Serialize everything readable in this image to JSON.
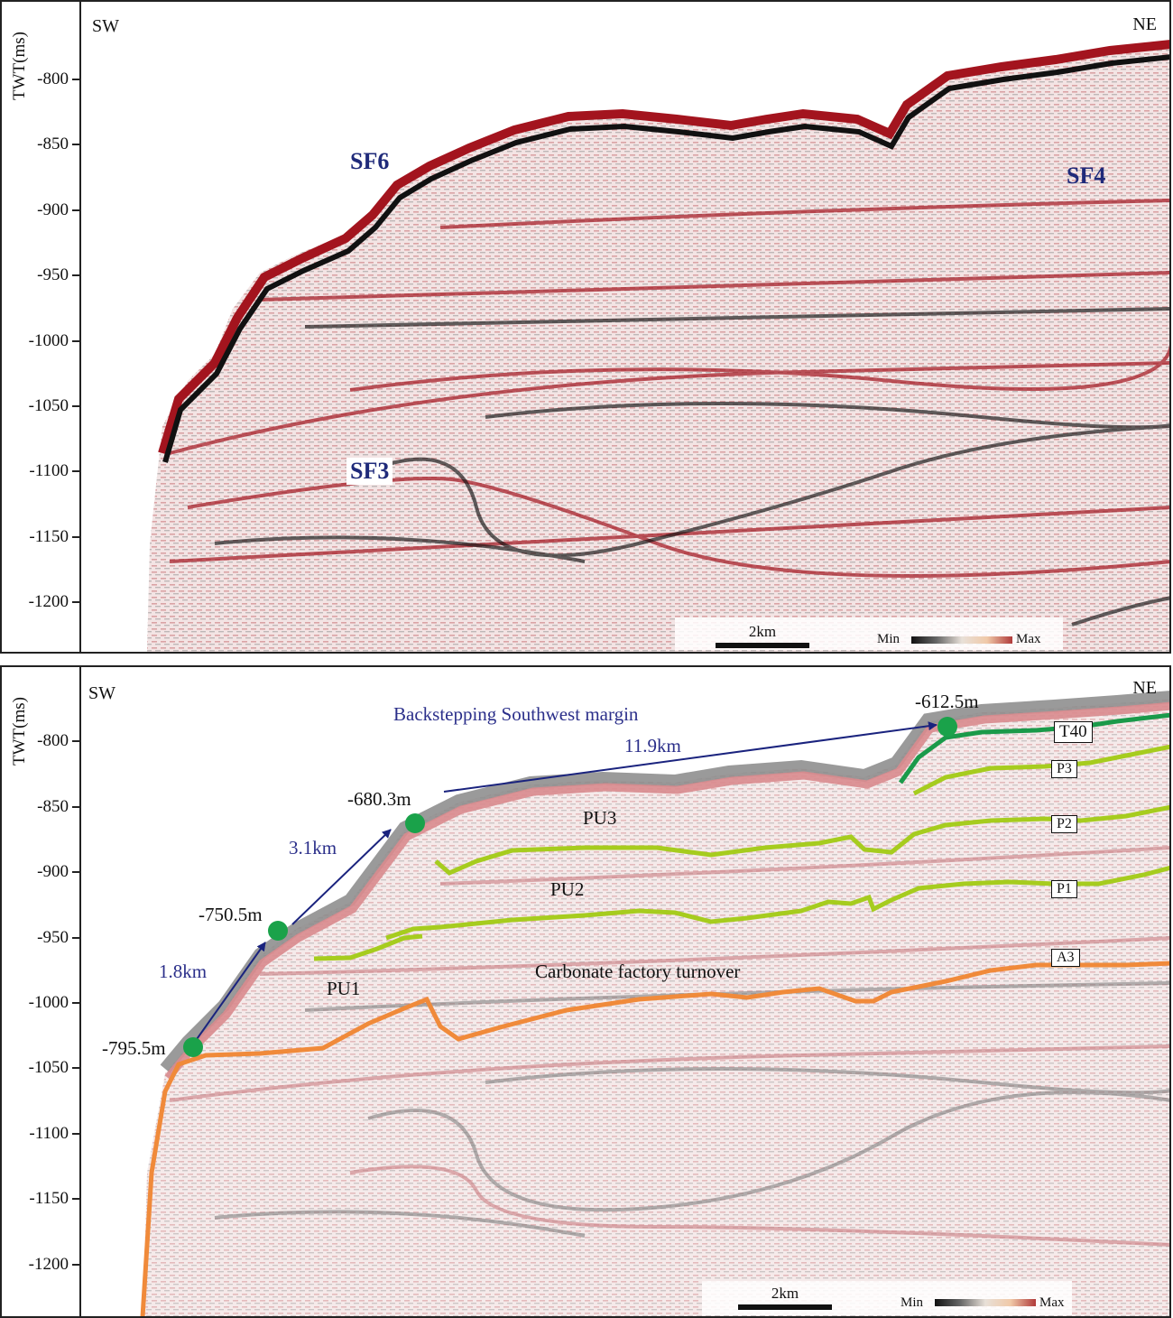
{
  "top_panel": {
    "axis_title": "TWT(ms)",
    "ticks": [
      "-800",
      "-850",
      "-900",
      "-950",
      "-1000",
      "-1050",
      "-1100",
      "-1150",
      "-1200"
    ],
    "left_label": "SW",
    "right_label": "NE",
    "sf_labels": {
      "sf6": "SF6",
      "sf4": "SF4",
      "sf3": "SF3"
    },
    "scale_bar": "2km",
    "colorbar": {
      "min": "Min",
      "max": "Max"
    }
  },
  "bottom_panel": {
    "axis_title": "TWT(ms)",
    "ticks": [
      "-800",
      "-850",
      "-900",
      "-950",
      "-1000",
      "-1050",
      "-1100",
      "-1150",
      "-1200"
    ],
    "left_label": "SW",
    "right_label": "NE",
    "title": "Backstepping Southwest margin",
    "depths": {
      "d1": "-795.5m",
      "d2": "-750.5m",
      "d3": "-680.3m",
      "d4": "-612.5m"
    },
    "distances": {
      "a": "1.8km",
      "b": "3.1km",
      "c": "11.9km"
    },
    "units": {
      "pu1": "PU1",
      "pu2": "PU2",
      "pu3": "PU3"
    },
    "annotation": "Carbonate factory turnover",
    "horizons": {
      "t40": "T40",
      "p3": "P3",
      "p2": "P2",
      "p1": "P1",
      "a3": "A3"
    },
    "scale_bar": "2km",
    "colorbar": {
      "min": "Min",
      "max": "Max"
    }
  },
  "colors": {
    "seismic_red": "#a3141e",
    "seismic_black": "#111111",
    "t40_green": "#1a9a4a",
    "horizon_lime": "#a6cc1e",
    "a3_orange": "#f08a3a",
    "arrow_navy": "#1a237e",
    "label_blue": "#1f2a7a"
  }
}
